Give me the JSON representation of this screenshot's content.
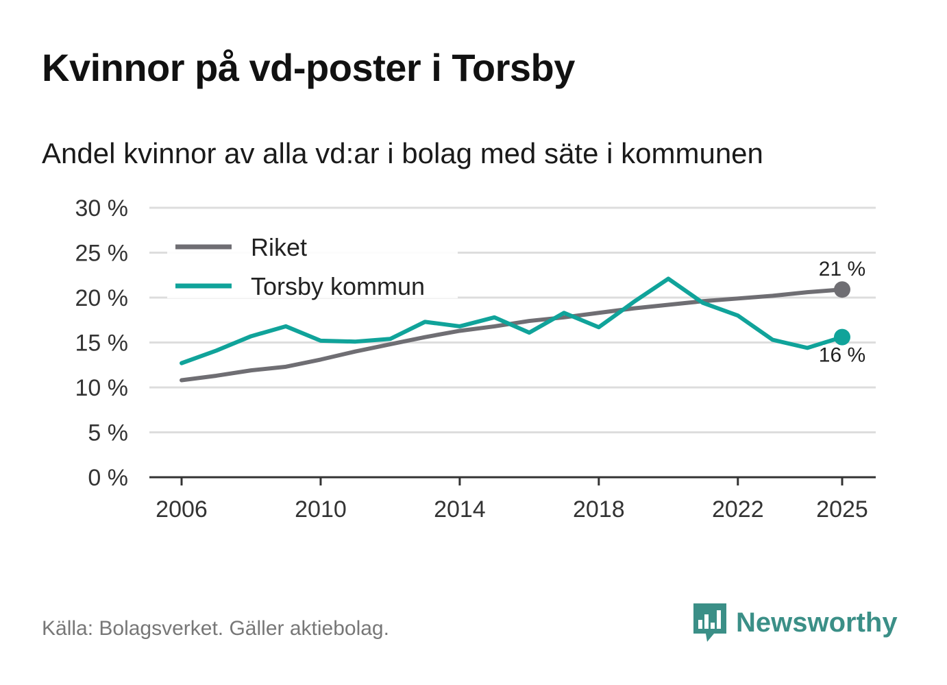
{
  "title": "Kvinnor på vd-poster i Torsby",
  "subtitle": "Andel kvinnor av alla vd:ar i bolag med säte i kommunen",
  "source": "Källa: Bolagsverket. Gäller aktiebolag.",
  "brand": {
    "name": "Newsworthy",
    "icon": "newsworthy-logo-icon",
    "color": "#3b8f87"
  },
  "colors": {
    "riket": "#6f6e73",
    "torsby": "#10a39a",
    "grid": "#dddddd",
    "axis": "#333333"
  },
  "chart_data": {
    "type": "line",
    "title": "Kvinnor på vd-poster i Torsby",
    "subtitle": "Andel kvinnor av alla vd:ar i bolag med säte i kommunen",
    "xlabel": "",
    "ylabel": "",
    "x": [
      2006,
      2007,
      2008,
      2009,
      2010,
      2011,
      2012,
      2013,
      2014,
      2015,
      2016,
      2017,
      2018,
      2019,
      2020,
      2021,
      2022,
      2023,
      2024,
      2025
    ],
    "x_ticks": [
      "2006",
      "2010",
      "2014",
      "2018",
      "2022",
      "2025"
    ],
    "x_tick_values": [
      2006,
      2010,
      2014,
      2018,
      2022,
      2025
    ],
    "ylim": [
      0,
      30
    ],
    "y_ticks": [
      "0 %",
      "5 %",
      "10 %",
      "15 %",
      "20 %",
      "25 %",
      "30 %"
    ],
    "y_tick_values": [
      0,
      5,
      10,
      15,
      20,
      25,
      30
    ],
    "grid": true,
    "legend_position": "top-left",
    "series": [
      {
        "name": "Riket",
        "color": "#6f6e73",
        "values": [
          10.8,
          11.3,
          11.9,
          12.3,
          13.1,
          14.0,
          14.8,
          15.6,
          16.3,
          16.8,
          17.4,
          17.8,
          18.3,
          18.8,
          19.2,
          19.6,
          19.9,
          20.2,
          20.6,
          20.9
        ],
        "end_label": "21 %"
      },
      {
        "name": "Torsby kommun",
        "color": "#10a39a",
        "values": [
          12.7,
          14.1,
          15.7,
          16.8,
          15.2,
          15.1,
          15.4,
          17.3,
          16.8,
          17.8,
          16.1,
          18.3,
          16.7,
          19.5,
          22.1,
          19.4,
          18.0,
          15.3,
          14.4,
          15.6
        ],
        "end_label": "16 %"
      }
    ]
  }
}
